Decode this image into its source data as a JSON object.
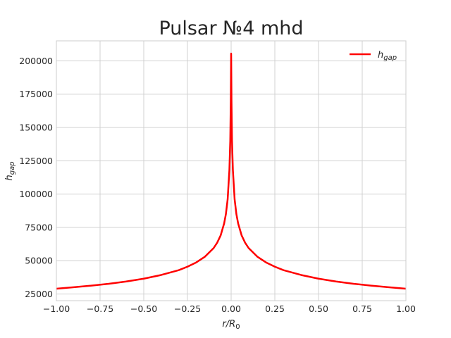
{
  "chart_data": {
    "type": "line",
    "title": "Pulsar №4 mhd",
    "xlabel": {
      "main": "r/R",
      "sub": "0"
    },
    "ylabel": {
      "main": "h",
      "sub": "gap"
    },
    "xlim": [
      -1.0,
      1.0
    ],
    "ylim": [
      20000,
      215000
    ],
    "x_ticks": [
      -1.0,
      -0.75,
      -0.5,
      -0.25,
      0.0,
      0.25,
      0.5,
      0.75,
      1.0
    ],
    "x_tick_labels": [
      "−1.00",
      "−0.75",
      "−0.50",
      "−0.25",
      "0.00",
      "0.25",
      "0.50",
      "0.75",
      "1.00"
    ],
    "y_ticks": [
      25000,
      50000,
      75000,
      100000,
      125000,
      150000,
      175000,
      200000
    ],
    "y_tick_labels": [
      "25000",
      "50000",
      "75000",
      "100000",
      "125000",
      "150000",
      "175000",
      "200000"
    ],
    "grid": true,
    "legend_position": "top-right",
    "series": [
      {
        "name": {
          "main": "h",
          "sub": "gap"
        },
        "color": "#ff0000",
        "x": [
          -1.0,
          -0.9,
          -0.8,
          -0.7,
          -0.6,
          -0.5,
          -0.4,
          -0.3,
          -0.25,
          -0.2,
          -0.15,
          -0.1,
          -0.08,
          -0.06,
          -0.04,
          -0.03,
          -0.02,
          -0.01,
          -0.005,
          -0.002,
          0.0,
          0.002,
          0.005,
          0.01,
          0.02,
          0.03,
          0.04,
          0.06,
          0.08,
          0.1,
          0.15,
          0.2,
          0.25,
          0.3,
          0.4,
          0.5,
          0.6,
          0.7,
          0.8,
          0.9,
          1.0
        ],
        "y": [
          29000,
          30100,
          31300,
          32700,
          34400,
          36500,
          39300,
          42900,
          45500,
          48700,
          53000,
          59500,
          63500,
          69000,
          78000,
          85000,
          96000,
          118000,
          140000,
          170000,
          205500,
          170000,
          140000,
          118000,
          96000,
          85000,
          78000,
          69000,
          63500,
          59500,
          53000,
          48700,
          45500,
          42900,
          39300,
          36500,
          34400,
          32700,
          31300,
          30100,
          29000
        ]
      }
    ]
  }
}
